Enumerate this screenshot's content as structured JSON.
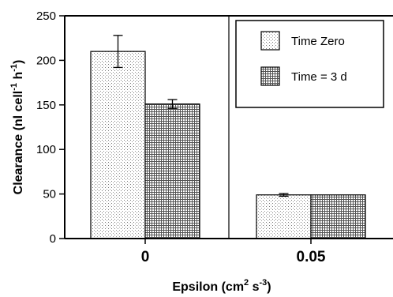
{
  "chart_data": {
    "type": "bar",
    "categories": [
      "0",
      "0.05"
    ],
    "series": [
      {
        "name": "Time Zero",
        "values": [
          210,
          49
        ],
        "errors": [
          18,
          1.5
        ],
        "pattern": "dots"
      },
      {
        "name": "Time = 3 d",
        "values": [
          151,
          49
        ],
        "errors": [
          5,
          0
        ],
        "pattern": "grid"
      }
    ],
    "y_ticks": [
      0,
      50,
      100,
      150,
      200,
      250
    ],
    "ylim": [
      0,
      250
    ],
    "xlabel": {
      "base": "Epsilon (cm",
      "sup1": "2",
      "mid": " s",
      "sup2": "-3",
      "end": ")"
    },
    "ylabel": {
      "base": "Clearance (nl cell",
      "sup": "-1",
      "end": " h",
      "sup2": "-1",
      "close": ")"
    },
    "legend_position": "top-right",
    "grid": false
  }
}
